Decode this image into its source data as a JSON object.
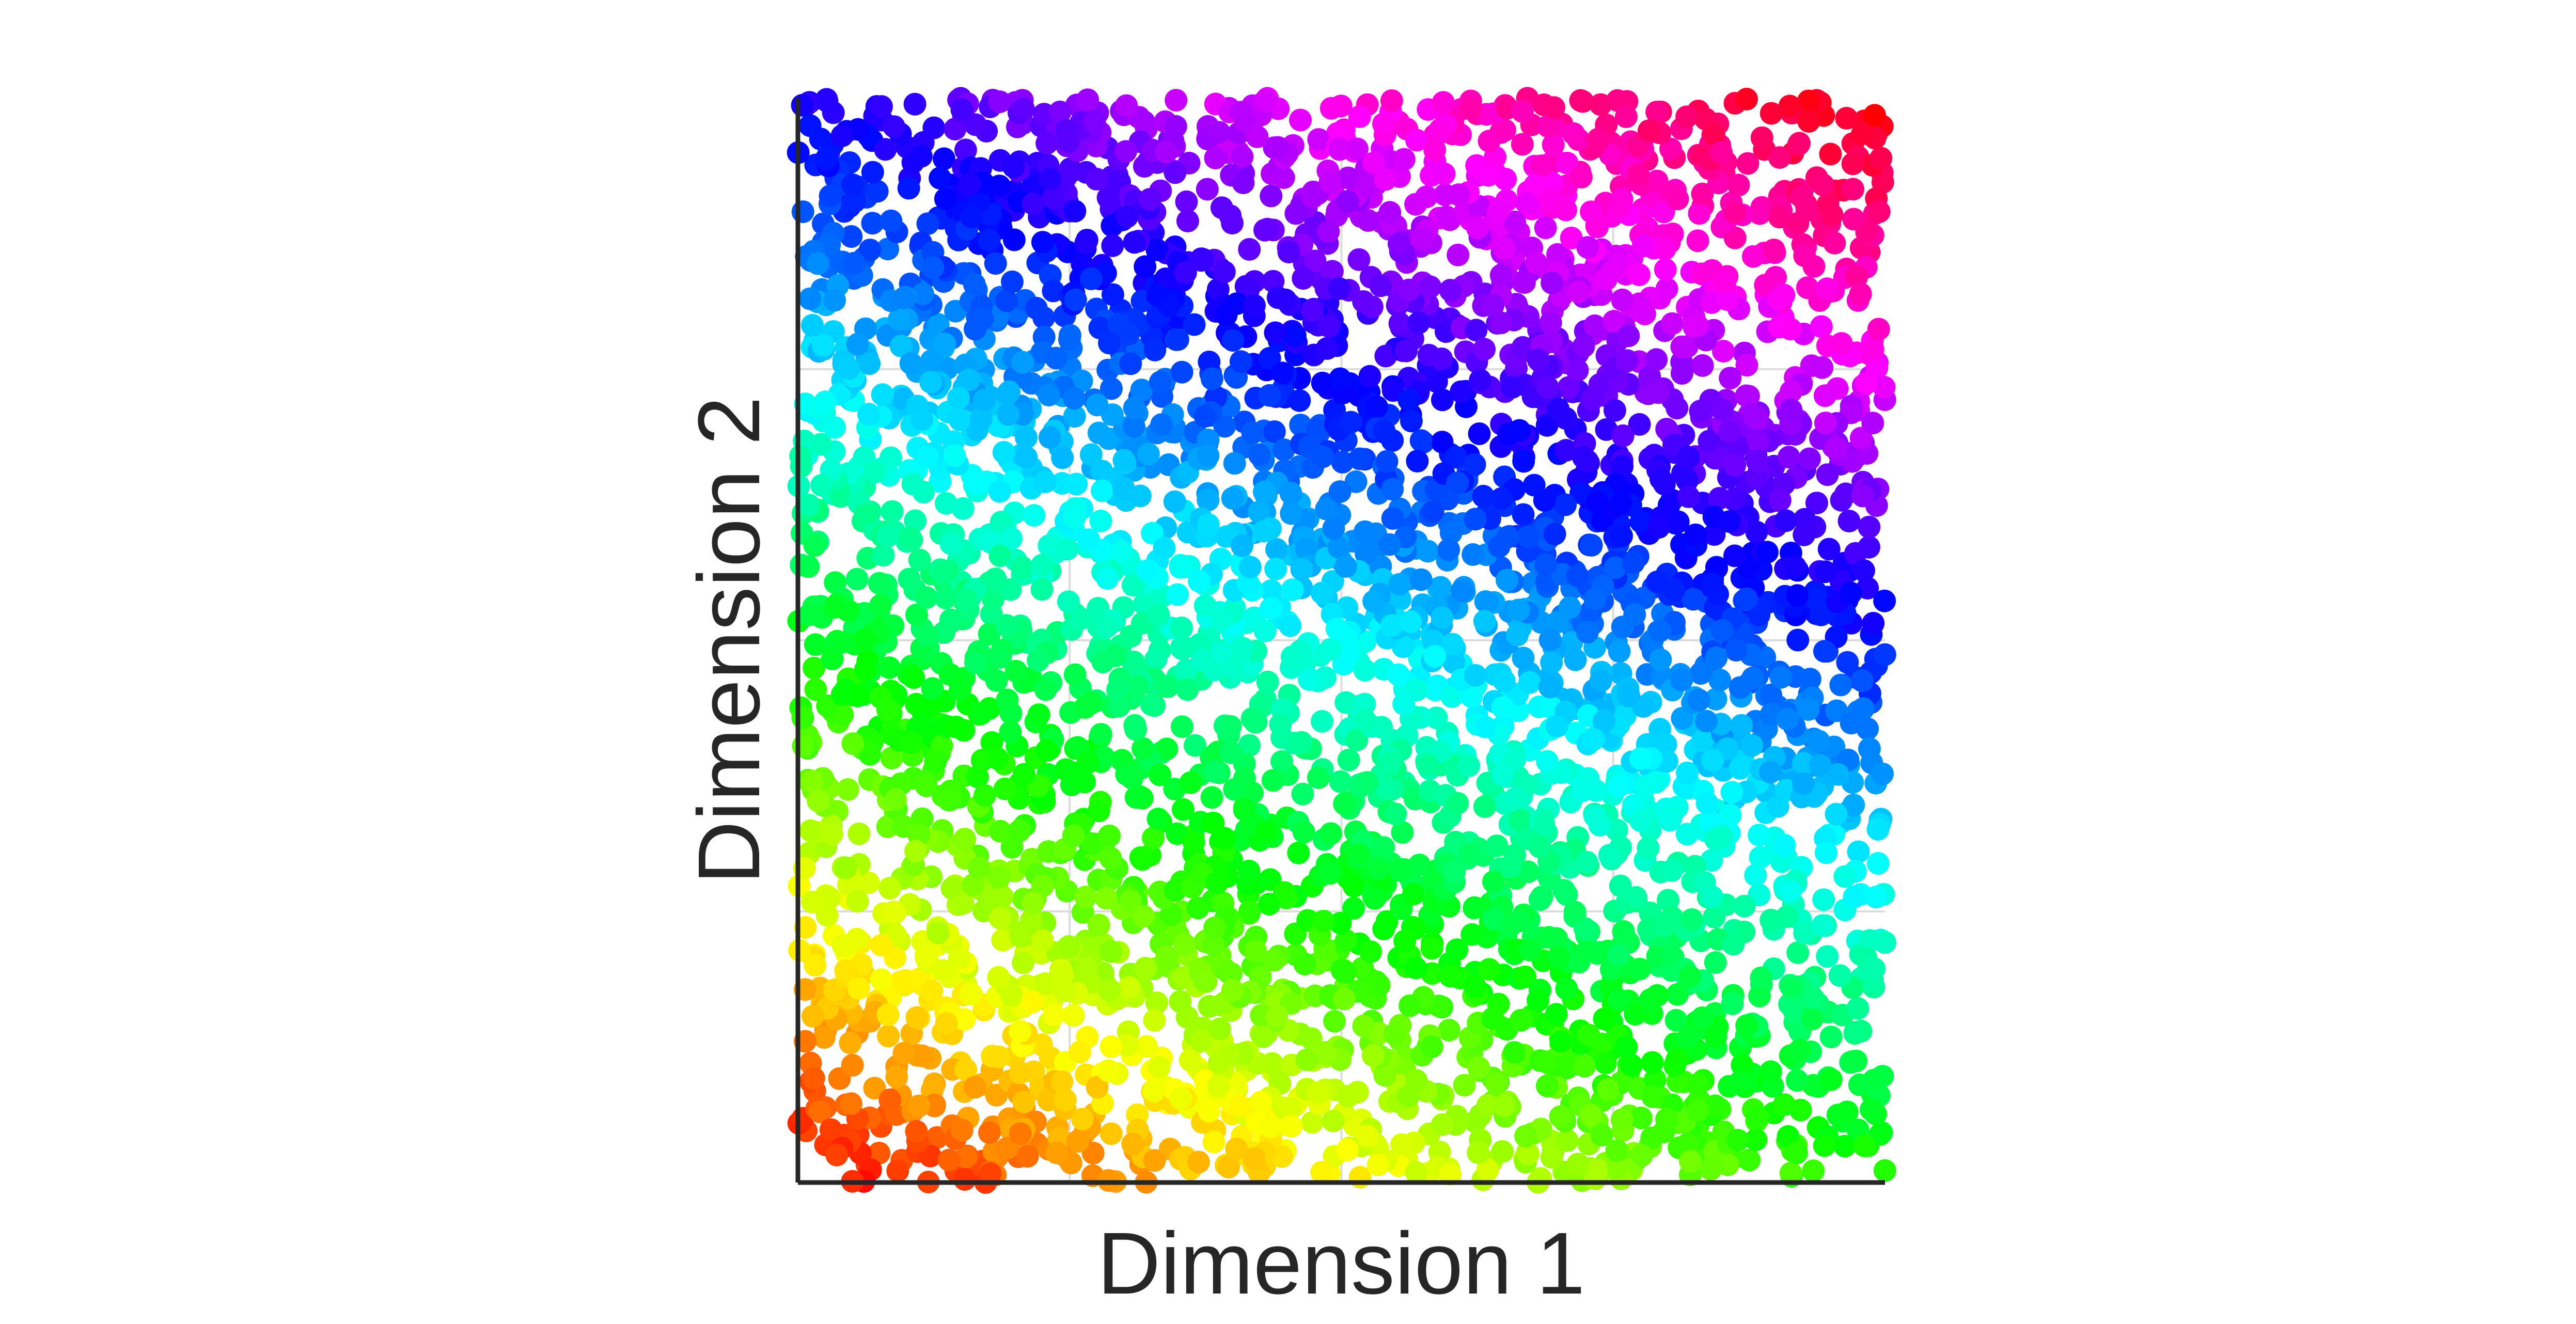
{
  "chart_data": {
    "type": "scatter",
    "title": "",
    "xlabel": "Dimension 1",
    "ylabel": "Dimension 2",
    "xlim": [
      0,
      1
    ],
    "ylim": [
      0,
      1
    ],
    "x_ticks_shown": false,
    "y_ticks_shown": false,
    "grid": true,
    "n_points": 4200,
    "random_seed": 20240317,
    "color_mapping": {
      "colormap": "hsv",
      "variable": "position along the diagonal gradient, red at bottom-left through yellow, green, cyan, blue, magenta to red at top-right",
      "direction": [
        0.42,
        0.91
      ]
    },
    "colors": {
      "axis": "#262626",
      "grid": "#dcdcdc",
      "text": "#262626",
      "background": "#ffffff"
    }
  }
}
